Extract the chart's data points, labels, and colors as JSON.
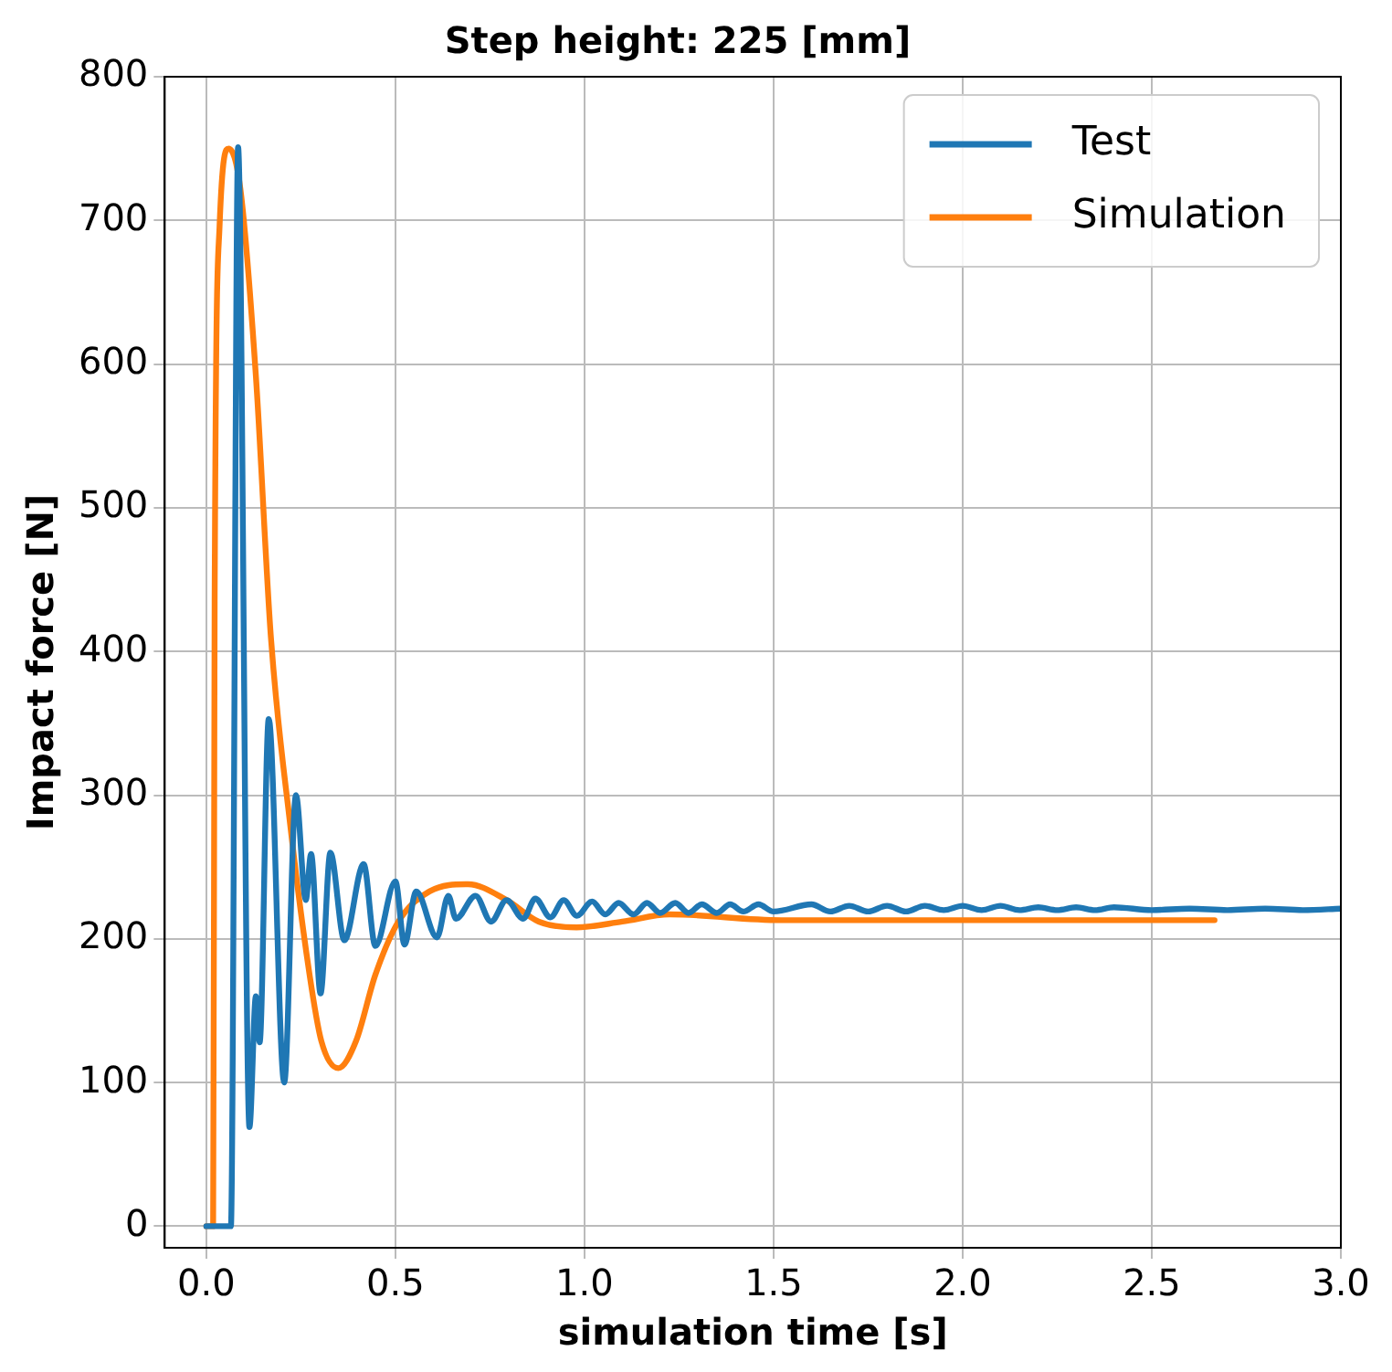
{
  "chart_data": {
    "type": "line",
    "title": "Step height: 225 [mm]",
    "xlabel": "simulation time [s]",
    "ylabel": "Impact force [N]",
    "xlim": [
      -0.11,
      3.0
    ],
    "ylim": [
      -15,
      800
    ],
    "xticks": [
      {
        "value": 0,
        "label": "0.0"
      },
      {
        "value": 0.5,
        "label": "0.5"
      },
      {
        "value": 1,
        "label": "1.0"
      },
      {
        "value": 1.5,
        "label": "1.5"
      },
      {
        "value": 2,
        "label": "2.0"
      },
      {
        "value": 2.5,
        "label": "2.5"
      },
      {
        "value": 3,
        "label": "3.0"
      }
    ],
    "yticks": [
      0,
      100,
      200,
      300,
      400,
      500,
      600,
      700,
      800
    ],
    "grid": true,
    "legend": "top right",
    "marker": "none",
    "line_style": "solid",
    "series": [
      {
        "name": "Test",
        "color": "#1f77b4",
        "x": [
          0,
          0.065,
          0.084,
          0.114,
          0.131,
          0.141,
          0.165,
          0.206,
          0.237,
          0.263,
          0.277,
          0.302,
          0.328,
          0.365,
          0.416,
          0.447,
          0.5,
          0.524,
          0.555,
          0.61,
          0.64,
          0.66,
          0.712,
          0.753,
          0.794,
          0.838,
          0.87,
          0.91,
          0.945,
          0.98,
          1.02,
          1.055,
          1.09,
          1.13,
          1.165,
          1.2,
          1.24,
          1.275,
          1.31,
          1.35,
          1.385,
          1.42,
          1.46,
          1.5,
          1.6,
          1.65,
          1.7,
          1.75,
          1.8,
          1.85,
          1.9,
          1.95,
          2.0,
          2.05,
          2.1,
          2.15,
          2.2,
          2.25,
          2.3,
          2.35,
          2.4,
          2.5,
          2.6,
          2.7,
          2.8,
          2.9,
          3.0
        ],
        "values": [
          0,
          0,
          751,
          69,
          160,
          128,
          353,
          100,
          300,
          227,
          259,
          162,
          260,
          199,
          252,
          195,
          240,
          196,
          233,
          201,
          230,
          214,
          230,
          212,
          227,
          214,
          228,
          215,
          227,
          216,
          226,
          217,
          225,
          217,
          225,
          218,
          225,
          218,
          224,
          218,
          224,
          219,
          224,
          219,
          224,
          219,
          223,
          219,
          223,
          219,
          223,
          220,
          223,
          220,
          223,
          220,
          222,
          220,
          222,
          220,
          222,
          220,
          221,
          220,
          221,
          220,
          221
        ]
      },
      {
        "name": "Simulation",
        "color": "#ff7f0e",
        "x": [
          0,
          0.018,
          0.022,
          0.035,
          0.059,
          0.09,
          0.131,
          0.171,
          0.222,
          0.273,
          0.304,
          0.349,
          0.396,
          0.447,
          0.508,
          0.59,
          0.692,
          0.794,
          0.879,
          0.979,
          1.1,
          1.225,
          1.52,
          2.0,
          2.666
        ],
        "values": [
          0,
          0,
          435,
          696,
          750,
          722,
          592,
          409,
          279,
          175,
          129,
          110,
          129,
          175,
          212,
          233,
          238,
          227,
          212,
          208,
          212,
          217,
          213,
          213,
          213
        ]
      }
    ]
  }
}
